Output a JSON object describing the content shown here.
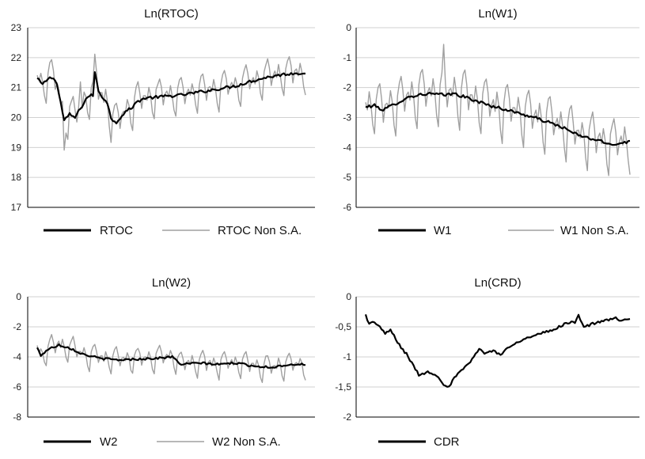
{
  "chart_data": [
    {
      "type": "line",
      "title": "Ln(RTOC)",
      "ylim": [
        17,
        23
      ],
      "y_ticks": [
        17,
        18,
        19,
        20,
        21,
        22,
        23
      ],
      "y_tick_labels": [
        "17",
        "18",
        "19",
        "20",
        "21",
        "22",
        "23"
      ],
      "grid": "horizontal",
      "legend_position": "bottom",
      "x_count": 150,
      "series": [
        {
          "name": "RTOC",
          "color": "#000000",
          "style": "adjusted",
          "anchors": [
            [
              0,
              21.3
            ],
            [
              3,
              21.1
            ],
            [
              6,
              21.3
            ],
            [
              9,
              21.35
            ],
            [
              11,
              21.1
            ],
            [
              13,
              20.5
            ],
            [
              15,
              19.9
            ],
            [
              18,
              20.1
            ],
            [
              21,
              20.0
            ],
            [
              25,
              20.4
            ],
            [
              28,
              20.7
            ],
            [
              31,
              20.75
            ],
            [
              32,
              21.5
            ],
            [
              34,
              20.9
            ],
            [
              36,
              20.7
            ],
            [
              39,
              20.5
            ],
            [
              41,
              19.95
            ],
            [
              44,
              19.85
            ],
            [
              49,
              20.2
            ],
            [
              52,
              20.3
            ],
            [
              56,
              20.55
            ],
            [
              60,
              20.65
            ],
            [
              70,
              20.7
            ],
            [
              80,
              20.75
            ],
            [
              90,
              20.85
            ],
            [
              100,
              20.95
            ],
            [
              110,
              21.05
            ],
            [
              118,
              21.2
            ],
            [
              128,
              21.35
            ],
            [
              138,
              21.45
            ],
            [
              149,
              21.5
            ]
          ],
          "noise": 0.05
        },
        {
          "name": "RTOC Non S.A.",
          "color": "#a0a0a0",
          "style": "seasonal",
          "amplitude": [
            [
              0,
              0.7
            ],
            [
              20,
              0.8
            ],
            [
              45,
              0.8
            ],
            [
              80,
              0.7
            ],
            [
              120,
              0.75
            ],
            [
              149,
              0.75
            ]
          ],
          "spikes": [
            [
              15,
              -1.0
            ],
            [
              24,
              0.9
            ],
            [
              32,
              0.6
            ]
          ]
        }
      ]
    },
    {
      "type": "line",
      "title": "Ln(W1)",
      "ylim": [
        -6,
        0
      ],
      "y_ticks": [
        -6,
        -5,
        -4,
        -3,
        -2,
        -1,
        0
      ],
      "y_tick_labels": [
        "-6",
        "-5",
        "-4",
        "-3",
        "-2",
        "-1",
        "0"
      ],
      "grid": "horizontal",
      "legend_position": "bottom",
      "x_count": 150,
      "series": [
        {
          "name": "W1",
          "color": "#000000",
          "style": "adjusted",
          "anchors": [
            [
              0,
              -2.65
            ],
            [
              5,
              -2.6
            ],
            [
              10,
              -2.75
            ],
            [
              18,
              -2.5
            ],
            [
              25,
              -2.3
            ],
            [
              35,
              -2.2
            ],
            [
              45,
              -2.25
            ],
            [
              50,
              -2.2
            ],
            [
              60,
              -2.4
            ],
            [
              70,
              -2.6
            ],
            [
              80,
              -2.75
            ],
            [
              95,
              -3.0
            ],
            [
              110,
              -3.3
            ],
            [
              120,
              -3.6
            ],
            [
              130,
              -3.75
            ],
            [
              138,
              -3.9
            ],
            [
              149,
              -3.8
            ]
          ],
          "noise": 0.05
        },
        {
          "name": "W1 Non S.A.",
          "color": "#a0a0a0",
          "style": "seasonal",
          "amplitude": [
            [
              0,
              1.0
            ],
            [
              30,
              1.1
            ],
            [
              60,
              1.1
            ],
            [
              100,
              1.1
            ],
            [
              149,
              1.1
            ]
          ],
          "spikes": [
            [
              44,
              1.7
            ]
          ]
        }
      ]
    },
    {
      "type": "line",
      "title": "Ln(W2)",
      "ylim": [
        -8,
        0
      ],
      "y_ticks": [
        -8,
        -6,
        -4,
        -2,
        0
      ],
      "y_tick_labels": [
        "-8",
        "-6",
        "-4",
        "-2",
        "0"
      ],
      "grid": "horizontal",
      "legend_position": "bottom",
      "x_count": 150,
      "series": [
        {
          "name": "W2",
          "color": "#000000",
          "style": "adjusted",
          "anchors": [
            [
              0,
              -3.4
            ],
            [
              2,
              -3.9
            ],
            [
              6,
              -3.5
            ],
            [
              12,
              -3.2
            ],
            [
              18,
              -3.4
            ],
            [
              25,
              -3.8
            ],
            [
              35,
              -4.1
            ],
            [
              45,
              -4.2
            ],
            [
              55,
              -4.15
            ],
            [
              65,
              -4.1
            ],
            [
              75,
              -4.0
            ],
            [
              80,
              -4.5
            ],
            [
              90,
              -4.4
            ],
            [
              100,
              -4.5
            ],
            [
              110,
              -4.4
            ],
            [
              120,
              -4.6
            ],
            [
              130,
              -4.7
            ],
            [
              140,
              -4.5
            ],
            [
              149,
              -4.5
            ]
          ],
          "noise": 0.07
        },
        {
          "name": "W2 Non S.A.",
          "color": "#a0a0a0",
          "style": "seasonal",
          "amplitude": [
            [
              0,
              1.0
            ],
            [
              20,
              1.0
            ],
            [
              60,
              1.0
            ],
            [
              100,
              1.0
            ],
            [
              149,
              1.0
            ]
          ],
          "spikes": []
        }
      ]
    },
    {
      "type": "line",
      "title": "Ln(CRD)",
      "ylim": [
        -2,
        0
      ],
      "y_ticks": [
        -2,
        -1.5,
        -1,
        -0.5,
        0
      ],
      "y_tick_labels": [
        "-2",
        "-1,5",
        "-1",
        "-0,5",
        "0"
      ],
      "grid": "horizontal",
      "legend_position": "bottom",
      "x_count": 150,
      "series": [
        {
          "name": "CDR",
          "color": "#000000",
          "style": "adjusted",
          "anchors": [
            [
              0,
              -0.3
            ],
            [
              2,
              -0.45
            ],
            [
              5,
              -0.42
            ],
            [
              8,
              -0.5
            ],
            [
              11,
              -0.62
            ],
            [
              14,
              -0.55
            ],
            [
              17,
              -0.7
            ],
            [
              20,
              -0.85
            ],
            [
              23,
              -0.95
            ],
            [
              26,
              -1.1
            ],
            [
              30,
              -1.3
            ],
            [
              35,
              -1.25
            ],
            [
              40,
              -1.3
            ],
            [
              44,
              -1.45
            ],
            [
              47,
              -1.5
            ],
            [
              50,
              -1.35
            ],
            [
              55,
              -1.2
            ],
            [
              60,
              -1.05
            ],
            [
              64,
              -0.85
            ],
            [
              67,
              -0.95
            ],
            [
              70,
              -0.9
            ],
            [
              73,
              -0.9
            ],
            [
              76,
              -0.98
            ],
            [
              80,
              -0.85
            ],
            [
              85,
              -0.75
            ],
            [
              90,
              -0.7
            ],
            [
              95,
              -0.65
            ],
            [
              100,
              -0.6
            ],
            [
              106,
              -0.55
            ],
            [
              112,
              -0.45
            ],
            [
              118,
              -0.42
            ],
            [
              120,
              -0.3
            ],
            [
              123,
              -0.5
            ],
            [
              128,
              -0.45
            ],
            [
              135,
              -0.4
            ],
            [
              140,
              -0.35
            ],
            [
              145,
              -0.4
            ],
            [
              149,
              -0.38
            ]
          ],
          "noise": 0.02
        }
      ]
    }
  ]
}
